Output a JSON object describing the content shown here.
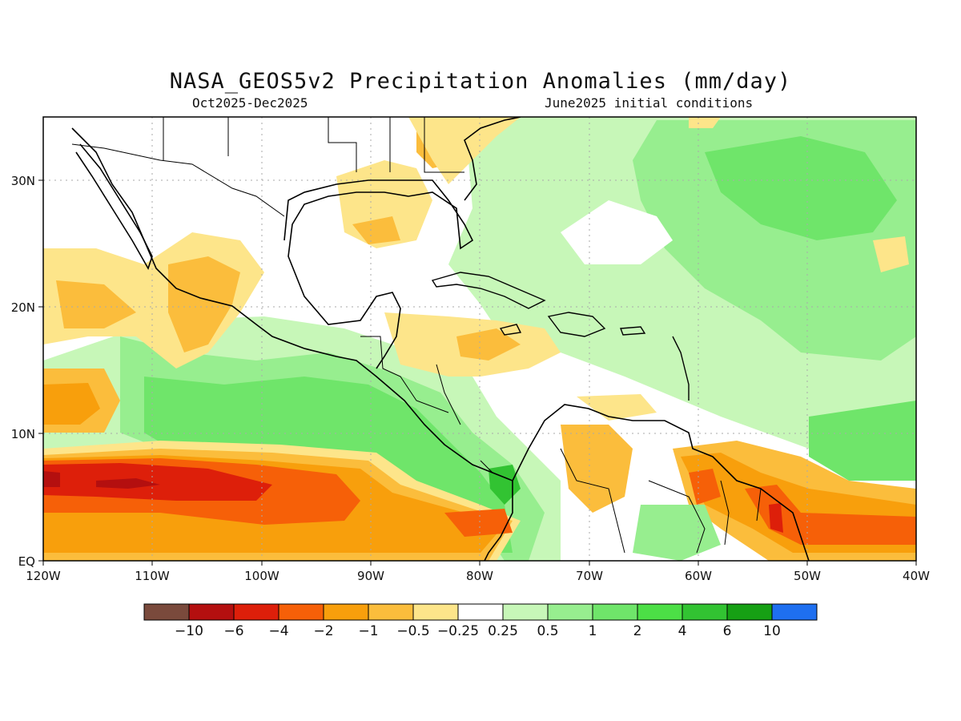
{
  "title": "NASA_GEOS5v2 Precipitation Anomalies (mm/day)",
  "subtitle_left": "Oct2025-Dec2025",
  "subtitle_right": "June2025 initial conditions",
  "map": {
    "type": "filled-contour precipitation anomaly map",
    "lon_range": [
      -120,
      -40
    ],
    "lat_range": [
      0,
      35
    ],
    "grid": true,
    "x_tick_labels": [
      "120W",
      "110W",
      "100W",
      "90W",
      "80W",
      "70W",
      "60W",
      "50W",
      "40W"
    ],
    "y_tick_labels": [
      "EQ",
      "10N",
      "20N",
      "30N"
    ],
    "x_tick_values": [
      -120,
      -110,
      -100,
      -90,
      -80,
      -70,
      -60,
      -50,
      -40
    ],
    "y_tick_values": [
      0,
      10,
      20,
      30
    ]
  },
  "colorbar": {
    "colors": [
      "#7a4a3c",
      "#b40f0f",
      "#dd1f0a",
      "#f66008",
      "#f89f0c",
      "#fbbd3c",
      "#fde58a",
      "#ffffff",
      "#c7f7b8",
      "#97ee8f",
      "#6fe56a",
      "#4cdf46",
      "#32c332",
      "#16a014",
      "#1e6ff0"
    ],
    "labels": [
      "-10",
      "-6",
      "-4",
      "-2",
      "-1",
      "-0.5",
      "-0.25",
      "0.25",
      "0.5",
      "1",
      "2",
      "4",
      "6",
      "10"
    ]
  },
  "regions": [
    {
      "name": "dry-eastern-pacific-itcz-band",
      "color": "#f89f0c",
      "anomaly": "-1 to -2"
    },
    {
      "name": "core-dry-eastern-pacific",
      "color": "#dd1f0a",
      "anomaly": "-4 to -6"
    },
    {
      "name": "wet-central-america-band",
      "color": "#6fe56a",
      "anomaly": "1 to 2"
    },
    {
      "name": "wet-subtropical-atlantic",
      "color": "#97ee8f",
      "anomaly": "0.5 to 1"
    },
    {
      "name": "dry-guianas",
      "color": "#f66008",
      "anomaly": "-2 to -4"
    }
  ]
}
